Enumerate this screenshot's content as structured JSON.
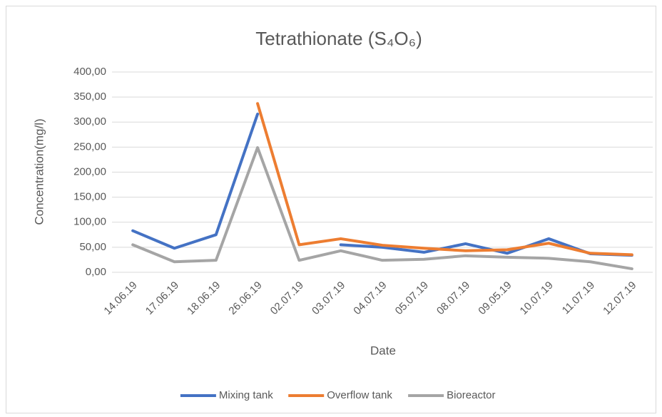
{
  "chart_data": {
    "type": "line",
    "title": "Tetrathionate (S₄O₆)",
    "x_label": "Date",
    "y_label": "Concentration(mg/l)",
    "categories": [
      "14.06.19",
      "17.06.19",
      "18.06.19",
      "26.06.19",
      "02.07.19",
      "03.07.19",
      "04.07.19",
      "05.07.19",
      "08.07.19",
      "09.05.19",
      "10.07.19",
      "11.07.19",
      "12.07.19"
    ],
    "series": [
      {
        "name": "Mixing tank",
        "color": "#4472c4",
        "values": [
          83,
          48,
          75,
          316,
          null,
          55,
          50,
          40,
          57,
          38,
          67,
          37,
          34
        ]
      },
      {
        "name": "Overflow tank",
        "color": "#ed7d31",
        "values": [
          null,
          null,
          null,
          337,
          55,
          67,
          54,
          48,
          43,
          45,
          58,
          38,
          35
        ]
      },
      {
        "name": "Bioreactor",
        "color": "#a5a5a5",
        "values": [
          55,
          21,
          24,
          249,
          24,
          43,
          24,
          26,
          33,
          30,
          28,
          21,
          7
        ]
      }
    ],
    "ylim": [
      0,
      400
    ],
    "yticks": [
      {
        "value": 0,
        "label": "0,00"
      },
      {
        "value": 50,
        "label": "50,00"
      },
      {
        "value": 100,
        "label": "100,00"
      },
      {
        "value": 150,
        "label": "150,00"
      },
      {
        "value": 200,
        "label": "200,00"
      },
      {
        "value": 250,
        "label": "250,00"
      },
      {
        "value": 300,
        "label": "300,00"
      },
      {
        "value": 350,
        "label": "350,00"
      },
      {
        "value": 400,
        "label": "400,00"
      }
    ],
    "grid": true,
    "legend": "bottom"
  }
}
